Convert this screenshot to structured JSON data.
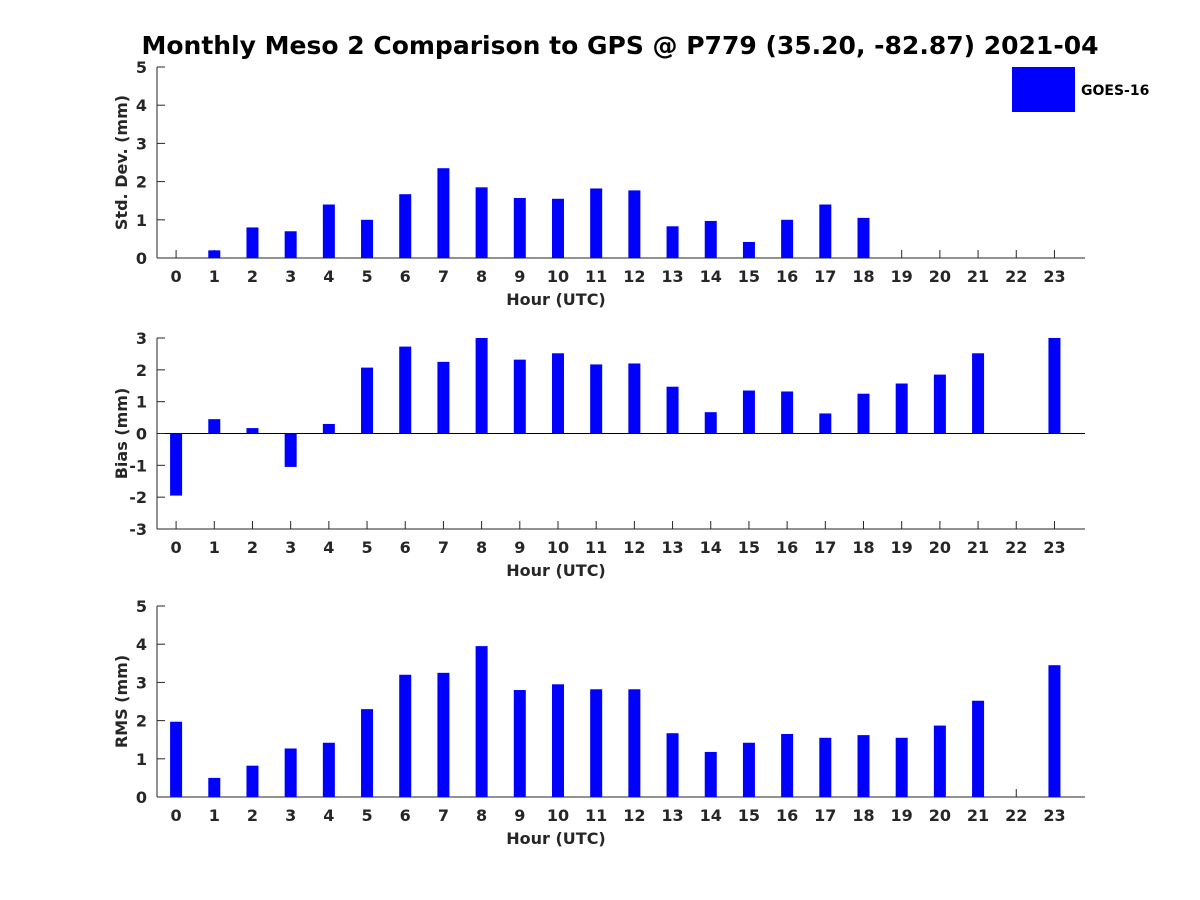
{
  "chart_data": {
    "title": "Monthly Meso 2 Comparison to GPS @ P779 (35.20, -82.87) 2021-04",
    "legend": {
      "label": "GOES-16",
      "placement": "top-right",
      "color": "#0000ff"
    },
    "panels": [
      {
        "type": "bar",
        "xlabel": "Hour (UTC)",
        "ylabel": "Std. Dev. (mm)",
        "ylim": [
          0,
          5
        ],
        "yticks": [
          "0",
          "1",
          "2",
          "3",
          "4",
          "5"
        ],
        "categories": [
          "0",
          "1",
          "2",
          "3",
          "4",
          "5",
          "6",
          "7",
          "8",
          "9",
          "10",
          "11",
          "12",
          "13",
          "14",
          "15",
          "16",
          "17",
          "18",
          "19",
          "20",
          "21",
          "22",
          "23"
        ],
        "series": [
          {
            "name": "GOES-16",
            "values": [
              0,
              0.2,
              0.8,
              0.7,
              1.4,
              1.0,
              1.67,
              2.35,
              1.85,
              1.57,
              1.55,
              1.82,
              1.77,
              0.83,
              0.97,
              0.42,
              1.0,
              1.4,
              1.05,
              0,
              0,
              0,
              0,
              0
            ]
          }
        ]
      },
      {
        "type": "bar",
        "xlabel": "Hour (UTC)",
        "ylabel": "Bias (mm)",
        "ylim": [
          -3,
          3
        ],
        "yticks": [
          "-3",
          "-2",
          "-1",
          "0",
          "1",
          "2",
          "3"
        ],
        "categories": [
          "0",
          "1",
          "2",
          "3",
          "4",
          "5",
          "6",
          "7",
          "8",
          "9",
          "10",
          "11",
          "12",
          "13",
          "14",
          "15",
          "16",
          "17",
          "18",
          "19",
          "20",
          "21",
          "22",
          "23"
        ],
        "series": [
          {
            "name": "GOES-16",
            "values": [
              -1.95,
              0.45,
              0.17,
              -1.05,
              0.3,
              2.07,
              2.73,
              2.25,
              3.0,
              2.32,
              2.52,
              2.17,
              2.2,
              1.47,
              0.67,
              1.35,
              1.32,
              0.63,
              1.25,
              1.57,
              1.85,
              2.52,
              0,
              3.0
            ]
          }
        ]
      },
      {
        "type": "bar",
        "xlabel": "Hour (UTC)",
        "ylabel": "RMS (mm)",
        "ylim": [
          0,
          5
        ],
        "yticks": [
          "0",
          "1",
          "2",
          "3",
          "4",
          "5"
        ],
        "categories": [
          "0",
          "1",
          "2",
          "3",
          "4",
          "5",
          "6",
          "7",
          "8",
          "9",
          "10",
          "11",
          "12",
          "13",
          "14",
          "15",
          "16",
          "17",
          "18",
          "19",
          "20",
          "21",
          "22",
          "23"
        ],
        "series": [
          {
            "name": "GOES-16",
            "values": [
              1.97,
              0.5,
              0.82,
              1.27,
              1.42,
              2.3,
              3.2,
              3.25,
              3.95,
              2.8,
              2.95,
              2.82,
              2.82,
              1.67,
              1.18,
              1.42,
              1.65,
              1.55,
              1.62,
              1.55,
              1.87,
              2.52,
              0,
              3.45
            ]
          }
        ]
      }
    ]
  }
}
